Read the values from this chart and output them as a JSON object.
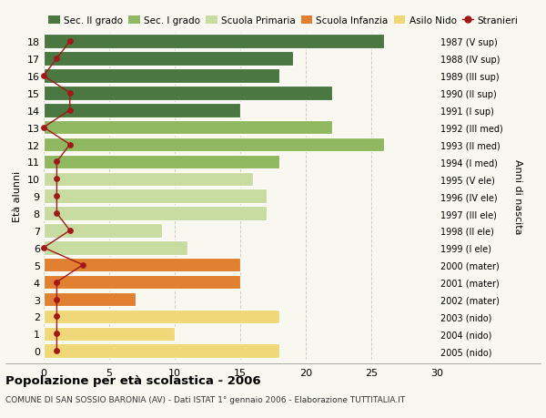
{
  "ages": [
    0,
    1,
    2,
    3,
    4,
    5,
    6,
    7,
    8,
    9,
    10,
    11,
    12,
    13,
    14,
    15,
    16,
    17,
    18
  ],
  "bar_values": [
    18,
    10,
    18,
    7,
    15,
    15,
    11,
    9,
    17,
    17,
    16,
    18,
    26,
    22,
    15,
    22,
    18,
    19,
    26
  ],
  "bar_colors": [
    "#f0d878",
    "#f0d878",
    "#f0d878",
    "#e08030",
    "#e08030",
    "#e08030",
    "#c8dba0",
    "#c8dba0",
    "#c8dba0",
    "#c8dba0",
    "#c8dba0",
    "#90b860",
    "#90b860",
    "#90b860",
    "#4a7840",
    "#4a7840",
    "#4a7840",
    "#4a7840",
    "#4a7840"
  ],
  "stranieri_x": [
    1,
    1,
    1,
    1,
    1,
    3,
    0,
    2,
    1,
    1,
    1,
    1,
    2,
    0,
    2,
    2,
    0,
    1,
    2
  ],
  "y_labels": [
    "2005 (nido)",
    "2004 (nido)",
    "2003 (nido)",
    "2002 (mater)",
    "2001 (mater)",
    "2000 (mater)",
    "1999 (I ele)",
    "1998 (II ele)",
    "1997 (III ele)",
    "1996 (IV ele)",
    "1995 (V ele)",
    "1994 (I med)",
    "1993 (II med)",
    "1992 (III med)",
    "1991 (I sup)",
    "1990 (II sup)",
    "1989 (III sup)",
    "1988 (IV sup)",
    "1987 (V sup)"
  ],
  "legend_labels": [
    "Sec. II grado",
    "Sec. I grado",
    "Scuola Primaria",
    "Scuola Infanzia",
    "Asilo Nido",
    "Stranieri"
  ],
  "legend_colors": [
    "#4a7840",
    "#90b860",
    "#c8dba0",
    "#e08030",
    "#f0d878",
    "#a01818"
  ],
  "ylabel_left": "Età alunni",
  "ylabel_right": "Anni di nascita",
  "title": "Popolazione per età scolastica - 2006",
  "subtitle": "COMUNE DI SAN SOSSIO BARONIA (AV) - Dati ISTAT 1° gennaio 2006 - Elaborazione TUTTITALIA.IT",
  "xlim": [
    0,
    30
  ],
  "xticks": [
    0,
    5,
    10,
    15,
    20,
    25,
    30
  ],
  "background_color": "#f8f8f0",
  "grid_color": "#cccccc",
  "stranieri_color": "#a01818"
}
